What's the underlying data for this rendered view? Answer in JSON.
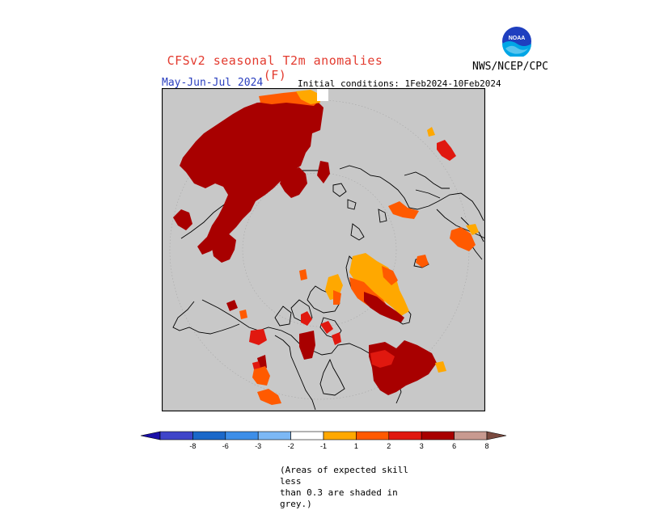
{
  "header": {
    "title": "CFSv2 seasonal T2m anomalies (F)",
    "organization": "NWS/NCEP/CPC",
    "logo_text": "NOAA",
    "period": "May-Jun-Jul 2024",
    "initial_conditions": "Initial conditions: 1Feb2024-10Feb2024"
  },
  "colorbar": {
    "tick_labels": [
      "-8",
      "-6",
      "-3",
      "-2",
      "-1",
      "1",
      "2",
      "3",
      "6",
      "8"
    ],
    "colors": [
      "#1a0fa8",
      "#3f45c9",
      "#1b68c9",
      "#3d8ee8",
      "#7cb8f5",
      "#ffffff",
      "#ffa800",
      "#ff5a00",
      "#e0180f",
      "#a80000",
      "#c89a90",
      "#7a4a3f"
    ]
  },
  "map": {
    "background_color": "#c8c8c8",
    "projection": "north-polar-stereographic",
    "anomaly_colors": {
      "dark_red": "#a80000",
      "red": "#e0180f",
      "orange_red": "#ff5a00",
      "orange": "#ffa800"
    }
  },
  "note": {
    "line1": "(Areas of expected skill less",
    "line2": "than 0.3 are shaded in grey.)"
  }
}
